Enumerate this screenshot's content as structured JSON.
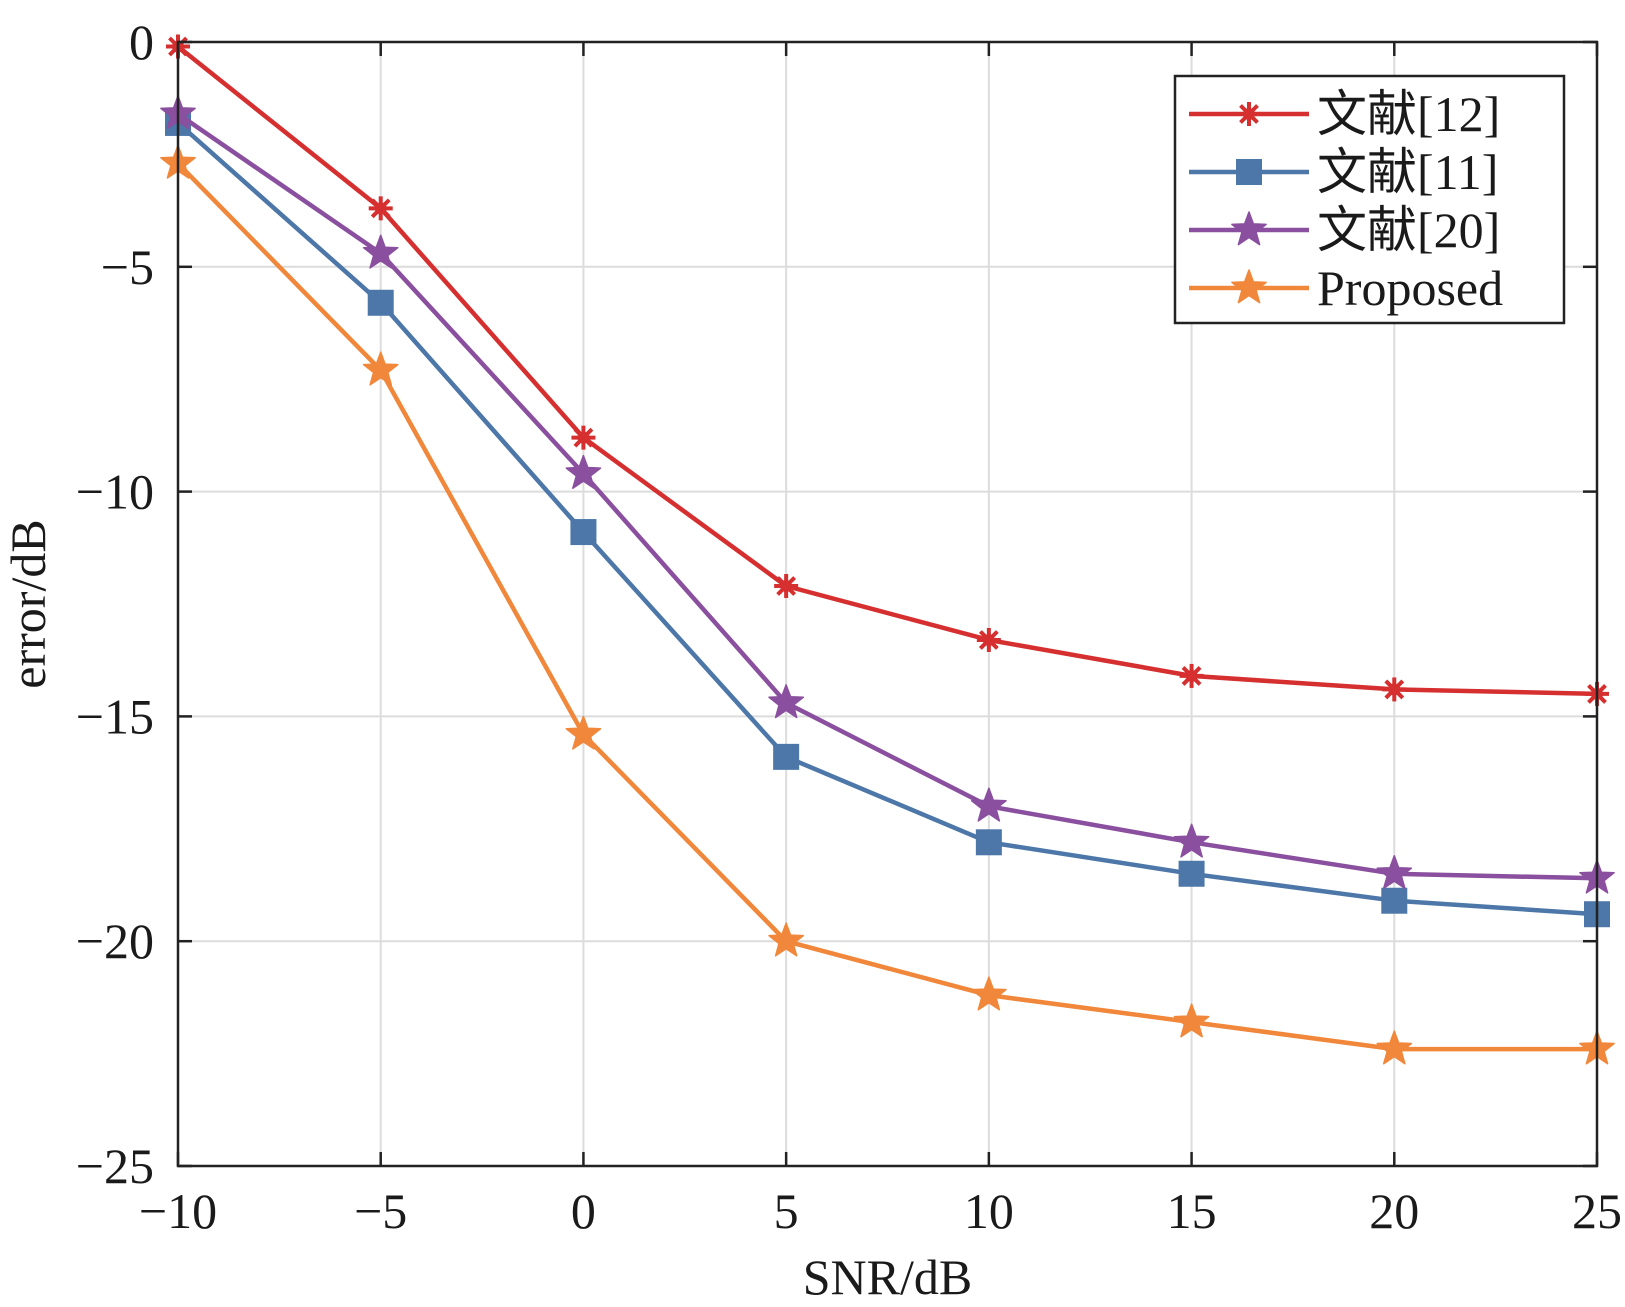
{
  "chart_data": {
    "type": "line",
    "title": "",
    "xlabel": "SNR/dB",
    "ylabel": "error/dB",
    "x": [
      -10,
      -5,
      0,
      5,
      10,
      15,
      20,
      25
    ],
    "xlim": [
      -10,
      25
    ],
    "ylim": [
      -25,
      0
    ],
    "xticks": [
      -10,
      -5,
      0,
      5,
      10,
      15,
      20,
      25
    ],
    "yticks": [
      0,
      -5,
      -10,
      -15,
      -20,
      -25
    ],
    "xtick_labels": [
      "−10",
      "−5",
      "0",
      "5",
      "10",
      "15",
      "20",
      "25"
    ],
    "ytick_labels": [
      "0",
      "−5",
      "−10",
      "−15",
      "−20",
      "−25"
    ],
    "grid": true,
    "legend_position": "top-right",
    "series": [
      {
        "name": "文献[12]",
        "marker": "asterisk",
        "color": "#d62f2f",
        "values": [
          -0.1,
          -3.7,
          -8.8,
          -12.1,
          -13.3,
          -14.1,
          -14.4,
          -14.5
        ]
      },
      {
        "name": "文献[11]",
        "marker": "square",
        "color": "#4c77a8",
        "values": [
          -1.8,
          -5.8,
          -10.9,
          -15.9,
          -17.8,
          -18.5,
          -19.1,
          -19.4
        ]
      },
      {
        "name": "文献[20]",
        "marker": "star",
        "color": "#8a4f9e",
        "values": [
          -1.6,
          -4.7,
          -9.6,
          -14.7,
          -17.0,
          -17.8,
          -18.5,
          -18.6
        ]
      },
      {
        "name": "Proposed",
        "marker": "star",
        "color": "#f0873a",
        "values": [
          -2.7,
          -7.3,
          -15.4,
          -20.0,
          -21.2,
          -21.8,
          -22.4,
          -22.4
        ]
      }
    ]
  }
}
